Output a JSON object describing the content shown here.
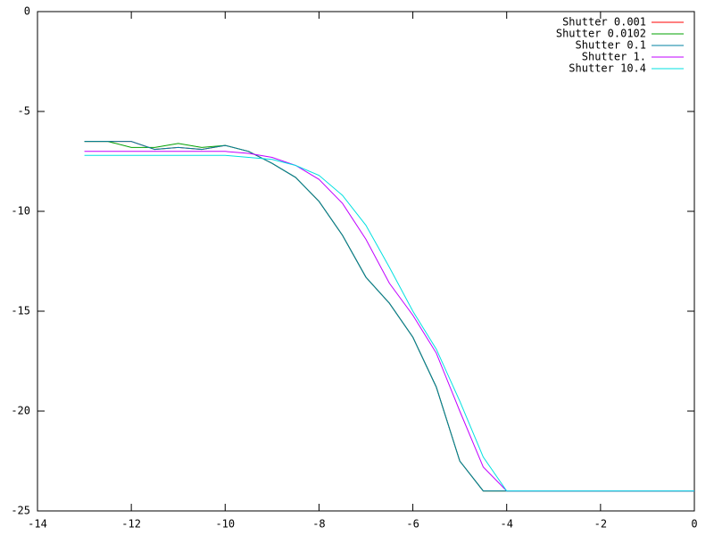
{
  "chart_data": {
    "type": "line",
    "x": [
      -13,
      -12.5,
      -12,
      -11.5,
      -11,
      -10.5,
      -10,
      -9.5,
      -9,
      -8.5,
      -8,
      -7.5,
      -7,
      -6.5,
      -6,
      -5.5,
      -5,
      -4.5,
      -4,
      -3,
      -2,
      -1,
      0
    ],
    "series": [
      {
        "name": "Shutter 0.001",
        "color": "#ff0000",
        "values": [
          -6.5,
          -6.5,
          -6.5,
          -6.9,
          -6.8,
          -6.9,
          -6.7,
          -7.0,
          -7.6,
          -8.3,
          -9.5,
          -11.2,
          -13.3,
          -14.6,
          -16.3,
          -18.8,
          -22.5,
          -24,
          -24,
          -24,
          -24,
          -24,
          -24
        ]
      },
      {
        "name": "Shutter 0.0102",
        "color": "#00a000",
        "values": [
          -6.5,
          -6.5,
          -6.8,
          -6.8,
          -6.6,
          -6.8,
          -6.7,
          -7.0,
          -7.6,
          -8.3,
          -9.5,
          -11.2,
          -13.3,
          -14.6,
          -16.3,
          -18.8,
          -22.5,
          -24,
          -24,
          -24,
          -24,
          -24,
          -24
        ]
      },
      {
        "name": "Shutter 0.1",
        "color": "#0080a0",
        "values": [
          -6.5,
          -6.5,
          -6.5,
          -6.9,
          -6.8,
          -6.9,
          -6.7,
          -7.0,
          -7.6,
          -8.3,
          -9.5,
          -11.2,
          -13.3,
          -14.6,
          -16.3,
          -18.8,
          -22.5,
          -24,
          -24,
          -24,
          -24,
          -24,
          -24
        ]
      },
      {
        "name": "Shutter 1.",
        "color": "#c000ff",
        "values": [
          -7.0,
          -7.0,
          -7.0,
          -7.0,
          -7.0,
          -7.0,
          -7.0,
          -7.1,
          -7.3,
          -7.7,
          -8.4,
          -9.6,
          -11.4,
          -13.6,
          -15.2,
          -17.1,
          -20.0,
          -22.8,
          -24,
          -24,
          -24,
          -24,
          -24
        ]
      },
      {
        "name": "Shutter 10.4",
        "color": "#00e0e0",
        "values": [
          -7.2,
          -7.2,
          -7.2,
          -7.2,
          -7.2,
          -7.2,
          -7.2,
          -7.3,
          -7.4,
          -7.7,
          -8.2,
          -9.2,
          -10.7,
          -12.8,
          -15.0,
          -16.9,
          -19.5,
          -22.3,
          -24,
          -24,
          -24,
          -24,
          -24
        ]
      }
    ],
    "xlim": [
      -14,
      0
    ],
    "xticks": [
      -14,
      -12,
      -10,
      -8,
      -6,
      -4,
      -2,
      0
    ],
    "ylim": [
      -25,
      0
    ],
    "yticks": [
      -25,
      -20,
      -15,
      -10,
      -5,
      0
    ],
    "legend": "top-right"
  }
}
